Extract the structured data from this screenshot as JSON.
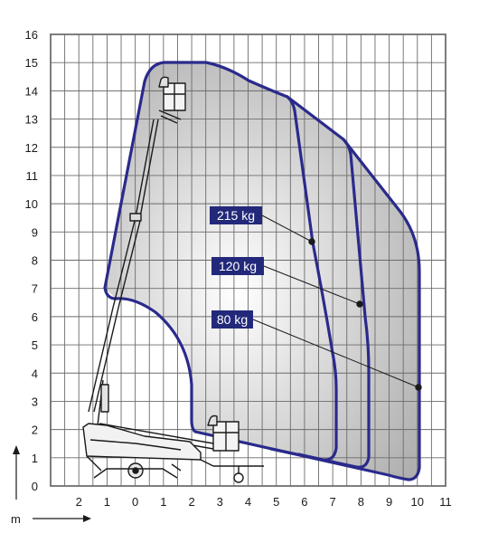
{
  "chart_data": {
    "type": "working-range-diagram",
    "axes": {
      "x_unit": "m",
      "y_ticks": [
        0,
        1,
        2,
        3,
        4,
        5,
        6,
        7,
        8,
        9,
        10,
        11,
        12,
        13,
        14,
        15,
        16
      ],
      "x_ticks": [
        "2",
        "1",
        "0",
        "1",
        "2",
        "3",
        "4",
        "5",
        "6",
        "7",
        "8",
        "9",
        "10",
        "11"
      ],
      "y_range": [
        0,
        16
      ],
      "x_range": [
        -3,
        11
      ],
      "grid": true
    },
    "envelopes": [
      {
        "label": "215 kg",
        "max_outreach": 7,
        "max_height": 15
      },
      {
        "label": "120 kg",
        "max_outreach": 8,
        "max_height": 15
      },
      {
        "label": "80 kg",
        "max_outreach": 10,
        "max_height": 15
      }
    ],
    "colors": {
      "envelope": "#2a2a8c",
      "label_bg": "#23297a",
      "label_text": "#ffffff",
      "grid": "#6b6b6b",
      "frame": "#4a4a4a",
      "shade_outer": "#a9a9a9",
      "shade_inner": "#ffffff"
    },
    "icons": [
      "aerial-work-platform-machine"
    ]
  }
}
